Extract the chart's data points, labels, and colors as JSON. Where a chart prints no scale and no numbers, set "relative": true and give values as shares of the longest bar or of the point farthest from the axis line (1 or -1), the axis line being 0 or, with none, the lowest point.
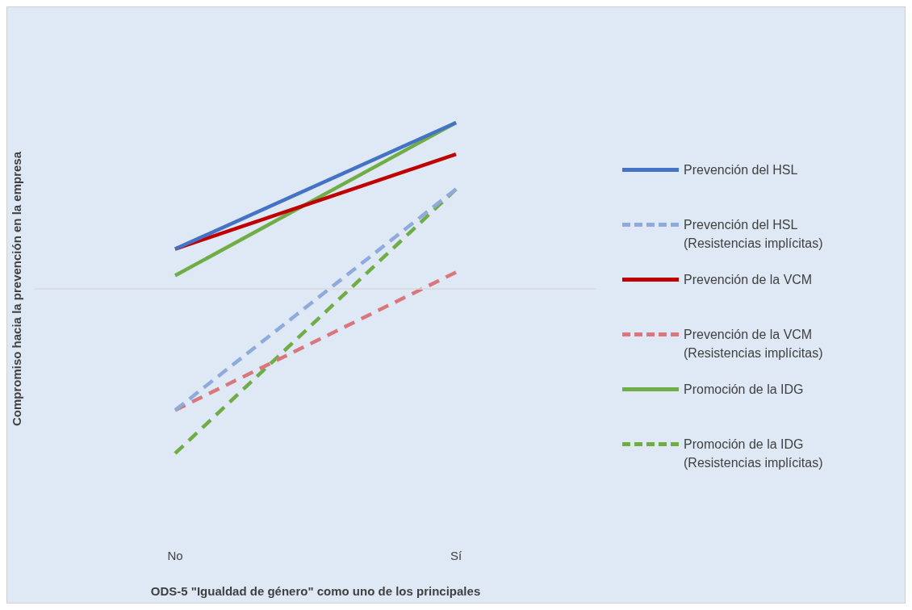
{
  "chart_data": {
    "type": "line",
    "relative": true,
    "xlabel": "ODS-5 \"Igualdad de género\" como uno de los principales",
    "ylabel": "Compromiso hacia la prevención en la empresa",
    "categories": [
      "No",
      "Sí"
    ],
    "grid": false,
    "legend": "right",
    "marker": "none",
    "series": [
      {
        "name": "Prevención del HSL",
        "color": "#4472c4",
        "line_style": "solid",
        "values": [
          0.24,
          1
        ]
      },
      {
        "name": "Prevención del HSL (Resistencias implícitas)",
        "color": "#8faadc",
        "line_style": "dashed",
        "values": [
          -0.73,
          0.6
        ]
      },
      {
        "name": "Prevención de la VCM",
        "color": "#c00000",
        "line_style": "solid",
        "values": [
          0.24,
          0.81
        ]
      },
      {
        "name": "Prevención de la VCM (Resistencias implícitas)",
        "color": "#d9777d",
        "line_style": "dashed",
        "values": [
          -0.73,
          0.1
        ]
      },
      {
        "name": "Promoción de la IDG",
        "color": "#70ad47",
        "line_style": "solid",
        "values": [
          0.08,
          1
        ]
      },
      {
        "name": "Promoción de la IDG (Resistencias implícitas)",
        "color": "#70ad47",
        "line_style": "dashed",
        "values": [
          -0.99,
          0.6
        ]
      }
    ]
  }
}
